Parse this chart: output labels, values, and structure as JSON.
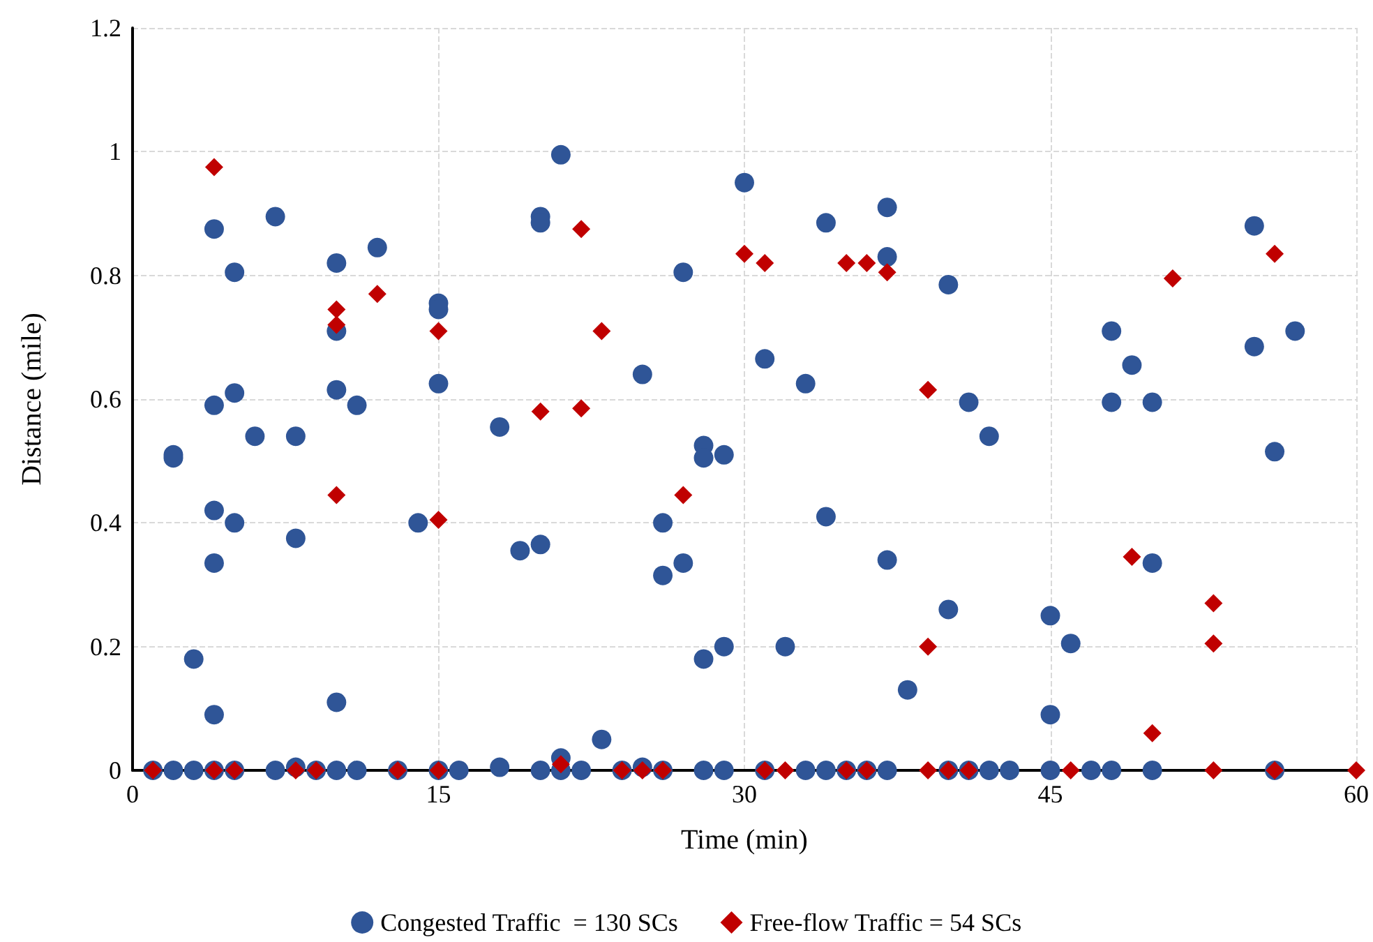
{
  "chart_data": {
    "type": "scatter",
    "xlabel": "Time (min)",
    "ylabel": "Distance (mile)",
    "xlim": [
      0,
      60
    ],
    "xticks": [
      0,
      15,
      30,
      45,
      60
    ],
    "ylim": [
      0,
      1.2
    ],
    "yticks": [
      0,
      0.2,
      0.4,
      0.6,
      0.8,
      1,
      1.2
    ],
    "grid": true,
    "legend": "bottom",
    "series": [
      {
        "name": "Congested Traffic  = 130 SCs",
        "color": "#2f5597",
        "marker": "circle",
        "x": [
          2,
          2,
          3,
          4,
          4,
          4,
          4,
          4,
          5,
          5,
          5,
          6,
          7,
          8,
          8,
          10,
          10,
          10,
          10,
          11,
          12,
          14,
          15,
          15,
          15,
          18,
          19,
          20,
          20,
          20,
          21,
          21,
          23,
          25,
          26,
          26,
          27,
          27,
          28,
          28,
          28,
          29,
          29,
          30,
          31,
          32,
          33,
          34,
          34,
          37,
          37,
          37,
          38,
          40,
          40,
          41,
          42,
          45,
          45,
          46,
          48,
          48,
          49,
          50,
          50,
          55,
          55,
          56,
          57,
          1,
          2,
          3,
          4,
          5,
          7,
          8,
          9,
          10,
          11,
          13,
          15,
          16,
          18,
          20,
          21,
          22,
          24,
          25,
          26,
          28,
          29,
          31,
          33,
          34,
          35,
          36,
          37,
          40,
          41,
          42,
          43,
          45,
          47,
          48,
          50,
          56
        ],
        "values": [
          0.51,
          0.505,
          0.18,
          0.875,
          0.59,
          0.42,
          0.335,
          0.09,
          0.805,
          0.61,
          0.4,
          0.54,
          0.895,
          0.54,
          0.375,
          0.82,
          0.71,
          0.615,
          0.11,
          0.59,
          0.845,
          0.4,
          0.755,
          0.745,
          0.625,
          0.555,
          0.355,
          0.895,
          0.885,
          0.365,
          0.995,
          0.02,
          0.05,
          0.64,
          0.4,
          0.315,
          0.805,
          0.335,
          0.525,
          0.505,
          0.18,
          0.51,
          0.2,
          0.95,
          0.665,
          0.2,
          0.625,
          0.885,
          0.41,
          0.91,
          0.83,
          0.34,
          0.13,
          0.785,
          0.26,
          0.595,
          0.54,
          0.25,
          0.09,
          0.205,
          0.71,
          0.595,
          0.655,
          0.595,
          0.335,
          0.88,
          0.685,
          0.515,
          0.71,
          0,
          0,
          0,
          0,
          0,
          0,
          0.005,
          0,
          0,
          0,
          0,
          0,
          0,
          0.005,
          0,
          0,
          0,
          0,
          0.005,
          0,
          0,
          0,
          0,
          0,
          0,
          0,
          0,
          0,
          0,
          0,
          0,
          0,
          0,
          0,
          0,
          0,
          0
        ]
      },
      {
        "name": "Free-flow Traffic = 54 SCs",
        "color": "#c00000",
        "marker": "diamond",
        "x": [
          4,
          10,
          10,
          10,
          12,
          15,
          15,
          20,
          22,
          22,
          23,
          27,
          30,
          31,
          35,
          36,
          37,
          39,
          39,
          49,
          50,
          51,
          53,
          53,
          56,
          21,
          1,
          4,
          5,
          8,
          9,
          13,
          15,
          24,
          26,
          31,
          32,
          35,
          36,
          39,
          40,
          41,
          46,
          53,
          56,
          60,
          25
        ],
        "values": [
          0.975,
          0.745,
          0.72,
          0.445,
          0.77,
          0.71,
          0.405,
          0.58,
          0.875,
          0.585,
          0.71,
          0.445,
          0.835,
          0.82,
          0.82,
          0.82,
          0.805,
          0.615,
          0.2,
          0.345,
          0.06,
          0.795,
          0.27,
          0.205,
          0.835,
          0.01,
          0,
          0,
          0,
          0,
          0,
          0,
          0,
          0,
          0,
          0,
          0,
          0,
          0,
          0,
          0,
          0,
          0,
          0,
          0,
          0,
          0
        ]
      }
    ]
  }
}
